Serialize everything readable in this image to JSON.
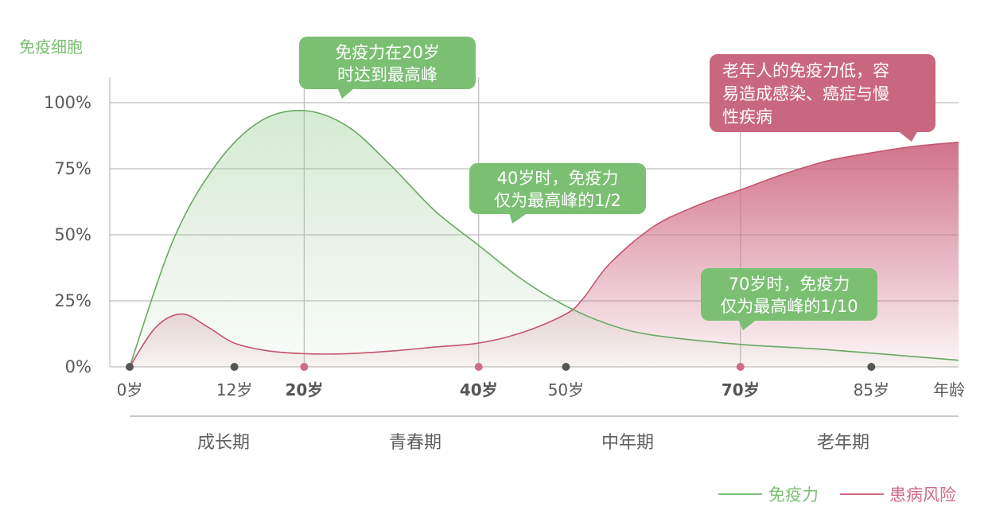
{
  "y_axis_title": "免疫细胞",
  "x_axis_title": "年龄",
  "colors": {
    "immunity": "#7bbf73",
    "immunity_line": "#6aa863",
    "risk": "#cf6c84",
    "risk_line": "#c2566f",
    "grid": "#bdbdbd",
    "dot_dark": "#555555"
  },
  "phases": [
    "成长期",
    "青春期",
    "中年期",
    "老年期"
  ],
  "callouts": [
    {
      "lines": [
        "免疫力在20岁",
        "时达到最高峰"
      ],
      "color": "green"
    },
    {
      "lines": [
        "40岁时，免疫力",
        "仅为最高峰的1/2"
      ],
      "color": "green"
    },
    {
      "lines": [
        "70岁时，免疫力",
        "仅为最高峰的1/10"
      ],
      "color": "green"
    },
    {
      "lines": [
        "老年人的免疫力低，容",
        "易造成感染、癌症与慢",
        "性疾病"
      ],
      "color": "red"
    }
  ],
  "legend": [
    {
      "label": "免疫力",
      "color": "#7bbf73"
    },
    {
      "label": "患病风险",
      "color": "#cf6c84"
    }
  ],
  "chart_data": {
    "type": "area",
    "x_ticks": [
      {
        "label": "0岁",
        "value": 0,
        "bold": false,
        "dot": "dark"
      },
      {
        "label": "12岁",
        "value": 12,
        "bold": false,
        "dot": "dark"
      },
      {
        "label": "20岁",
        "value": 20,
        "bold": true,
        "dot": "red"
      },
      {
        "label": "40岁",
        "value": 40,
        "bold": true,
        "dot": "red"
      },
      {
        "label": "50岁",
        "value": 50,
        "bold": false,
        "dot": "dark"
      },
      {
        "label": "70岁",
        "value": 70,
        "bold": true,
        "dot": "red"
      },
      {
        "label": "85岁",
        "value": 85,
        "bold": false,
        "dot": "dark"
      }
    ],
    "y_ticks": [
      "0%",
      "25%",
      "50%",
      "75%",
      "100%"
    ],
    "ylim": [
      0,
      100
    ],
    "xlim": [
      0,
      95
    ],
    "series": [
      {
        "name": "免疫力",
        "x": [
          0,
          5,
          10,
          15,
          20,
          25,
          30,
          35,
          40,
          45,
          50,
          55,
          60,
          70,
          80,
          95
        ],
        "y": [
          0,
          48,
          77,
          93,
          97,
          91,
          76,
          59,
          46,
          33,
          23,
          16,
          12,
          8.5,
          6.5,
          2.5
        ]
      },
      {
        "name": "患病风险",
        "x": [
          0,
          3,
          6,
          9,
          12,
          16,
          20,
          25,
          30,
          35,
          40,
          45,
          50,
          52,
          55,
          60,
          65,
          70,
          75,
          80,
          85,
          90,
          95
        ],
        "y": [
          0,
          15,
          20,
          15,
          9,
          6,
          5,
          5,
          6,
          7.5,
          9,
          13,
          20,
          26,
          39,
          53,
          61,
          67,
          73,
          78,
          81,
          83.5,
          85
        ]
      }
    ]
  }
}
